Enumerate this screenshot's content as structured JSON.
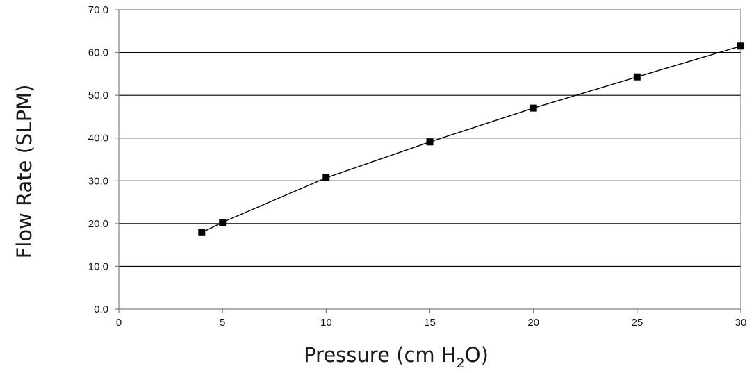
{
  "chart_data": {
    "type": "line",
    "title": "",
    "xlabel": "Pressure (cm H₂O)",
    "xlabel_parts": {
      "before": "Pressure (cm H",
      "sub": "2",
      "after": "O)"
    },
    "ylabel": "Flow Rate (SLPM)",
    "xlim": [
      0,
      30
    ],
    "ylim": [
      0,
      70
    ],
    "x_ticks": [
      0,
      5,
      10,
      15,
      20,
      25,
      30
    ],
    "x_tick_labels": [
      "0",
      "5",
      "10",
      "15",
      "20",
      "25",
      "30"
    ],
    "y_ticks": [
      0,
      10,
      20,
      30,
      40,
      50,
      60,
      70
    ],
    "y_tick_labels": [
      "0.0",
      "10.0",
      "20.0",
      "30.0",
      "40.0",
      "50.0",
      "60.0",
      "70.0"
    ],
    "grid": "horizontal",
    "legend": "none",
    "series": [
      {
        "name": "Flow Rate",
        "marker": "square",
        "x": [
          4,
          5,
          10,
          15,
          20,
          25,
          30
        ],
        "y": [
          17.9,
          20.3,
          30.7,
          39.1,
          47.0,
          54.3,
          61.5
        ]
      }
    ]
  },
  "colors": {
    "line": "#000000",
    "grid": "#000000",
    "frame": "#808080",
    "text": "#111111"
  }
}
